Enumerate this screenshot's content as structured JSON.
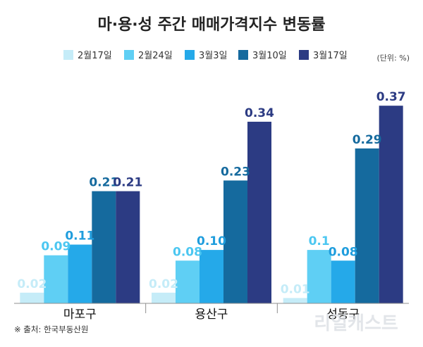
{
  "chart_data": {
    "type": "bar",
    "title": "마·용·성 주간 매매가격지수 변동률",
    "unit": "(단위: %)",
    "categories": [
      "마포구",
      "용산구",
      "성동구"
    ],
    "series": [
      {
        "name": "2월17일",
        "values": [
          0.02,
          0.02,
          0.01
        ],
        "labels": [
          "0.02",
          "0.02",
          "0.01"
        ],
        "color": "#c5ecf8",
        "label_color": "#c5ecf8"
      },
      {
        "name": "2월24일",
        "values": [
          0.09,
          0.08,
          0.1
        ],
        "labels": [
          "0.09",
          "0.08",
          "0.1"
        ],
        "color": "#5fcff4",
        "label_color": "#4cc7f1"
      },
      {
        "name": "3월3일",
        "values": [
          0.11,
          0.1,
          0.08
        ],
        "labels": [
          "0.11",
          "0.10",
          "0.08"
        ],
        "color": "#25a9e9",
        "label_color": "#1f9ddd"
      },
      {
        "name": "3월10일",
        "values": [
          0.21,
          0.23,
          0.29
        ],
        "labels": [
          "0.21",
          "0.23",
          "0.29"
        ],
        "color": "#156a9e",
        "label_color": "#156a9e"
      },
      {
        "name": "3월17일",
        "values": [
          0.21,
          0.34,
          0.37
        ],
        "labels": [
          "0.21",
          "0.34",
          "0.37"
        ],
        "color": "#2c3b83",
        "label_color": "#2c3b83"
      }
    ],
    "ylim": [
      0,
      0.39
    ],
    "xlabel": "",
    "ylabel": "",
    "grid": false,
    "legend_position": "top"
  },
  "source": "※ 출처: 한국부동산원",
  "watermark": "리얼캐스트"
}
